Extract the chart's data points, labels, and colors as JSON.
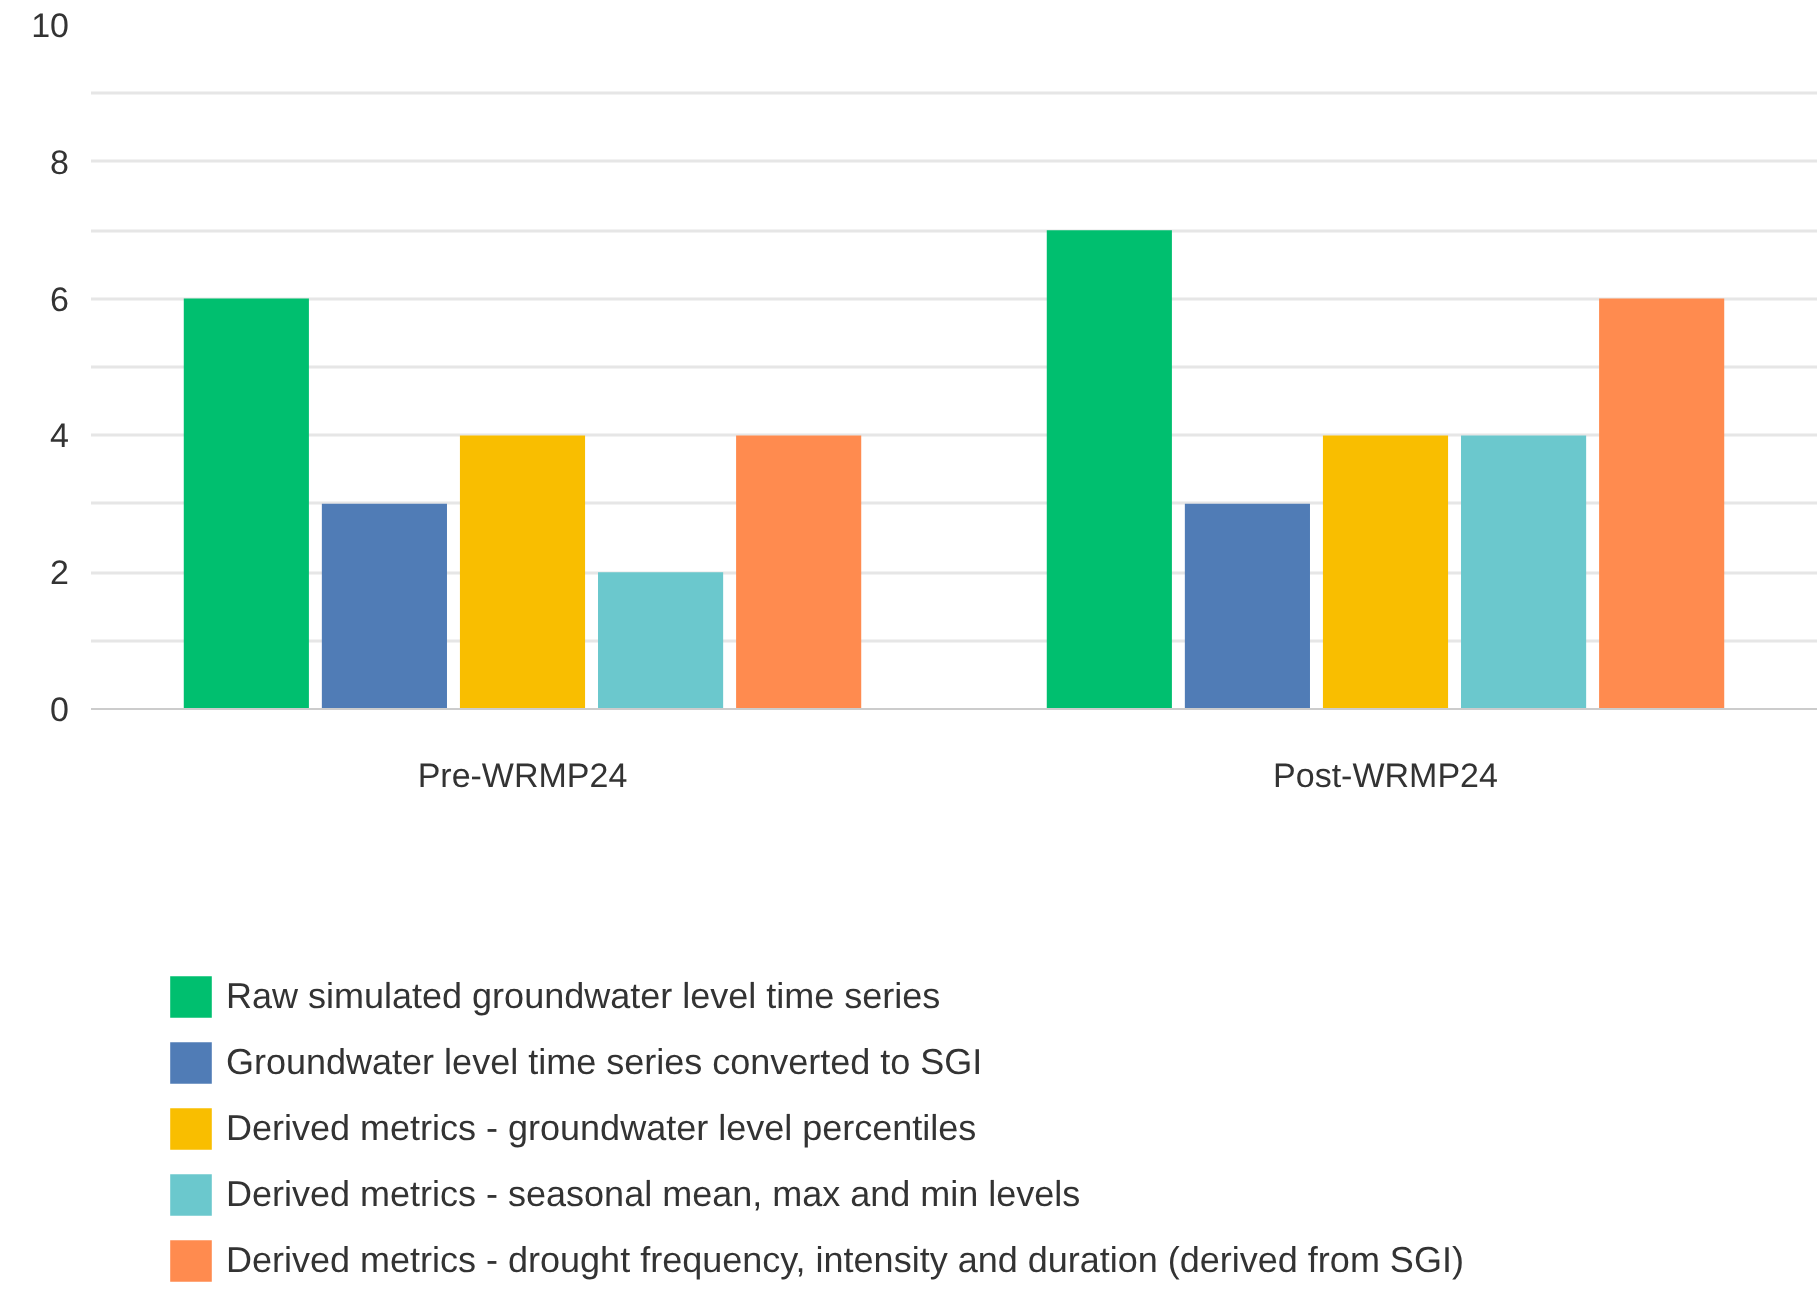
{
  "chart_data": {
    "type": "bar",
    "categories": [
      "Pre-WRMP24",
      "Post-WRMP24"
    ],
    "series": [
      {
        "name": "Raw simulated groundwater level time series",
        "color": "#00bf6f",
        "values": [
          6,
          7
        ]
      },
      {
        "name": "Groundwater level time series converted to SGI",
        "color": "#507cb6",
        "values": [
          3,
          3
        ]
      },
      {
        "name": "Derived metrics - groundwater level percentiles",
        "color": "#f9be00",
        "values": [
          4,
          4
        ]
      },
      {
        "name": "Derived metrics - seasonal mean, max and min levels",
        "color": "#6bc8cd",
        "values": [
          2,
          4
        ]
      },
      {
        "name": "Derived metrics - drought frequency, intensity and duration (derived from SGI)",
        "color": "#ff8b4f",
        "values": [
          4,
          6
        ]
      }
    ],
    "ylim": [
      0,
      10
    ],
    "yticks": [
      0,
      {
        "value": 1,
        "label": null
      },
      2,
      {
        "value": 3,
        "label": null
      },
      4,
      {
        "value": 5,
        "label": null
      },
      6,
      {
        "value": 7,
        "label": null
      },
      8,
      {
        "value": 9,
        "label": null
      },
      10
    ],
    "grid": "y",
    "legend": "bottom"
  }
}
